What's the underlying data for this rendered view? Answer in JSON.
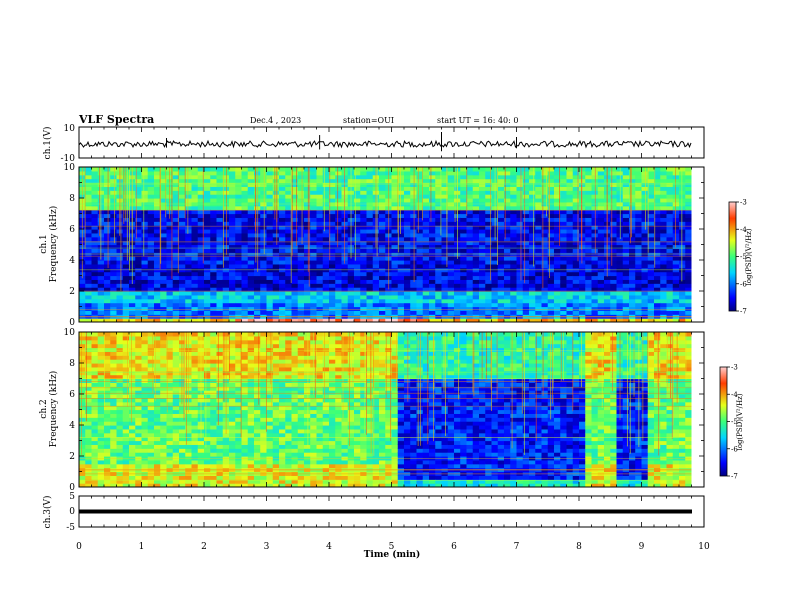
{
  "header": {
    "title": "VLF Spectra",
    "date": "Dec.4 , 2023",
    "station": "station=OUI",
    "start": "start UT =  16: 40: 0"
  },
  "chart_data": [
    {
      "type": "line",
      "panel": "ch1-waveform",
      "ylabel": "ch.1(V)",
      "ylim": [
        -10,
        10
      ],
      "y_ticks": [
        "10",
        "-10"
      ],
      "x": [
        0,
        1,
        2,
        3,
        4,
        5,
        6,
        7,
        8,
        9,
        9.8
      ],
      "values": [
        -1,
        -1,
        -1,
        -1,
        -1,
        -1,
        -1,
        -1,
        -1,
        -1,
        -1
      ]
    },
    {
      "type": "heatmap",
      "panel": "ch1-spectrogram",
      "ylabel": "ch.1\nFrequency (kHz)",
      "ylim": [
        0,
        10
      ],
      "y_ticks": [
        "0",
        "2",
        "4",
        "6",
        "8",
        "10"
      ],
      "xlim": [
        0,
        10
      ],
      "colorbar": {
        "label": "log(PSD)(V²/Hz)",
        "range": [
          -7,
          -3
        ],
        "ticks": [
          "-3",
          "-4",
          "-5",
          "-6",
          "-7"
        ]
      },
      "bands_khz": [
        {
          "from": 0,
          "to": 0.3,
          "level": -3.5
        },
        {
          "from": 0.3,
          "to": 1.2,
          "level": -6.3
        },
        {
          "from": 1.2,
          "to": 3.8,
          "level": -6.5
        },
        {
          "from": 3.8,
          "to": 7.2,
          "level": -6.4
        },
        {
          "from": 7.2,
          "to": 10,
          "level": -5.0
        }
      ]
    },
    {
      "type": "heatmap",
      "panel": "ch2-spectrogram",
      "ylabel": "ch.2\nFrequency (kHz)",
      "ylim": [
        0,
        10
      ],
      "y_ticks": [
        "0",
        "2",
        "4",
        "6",
        "8",
        "10"
      ],
      "xlim": [
        0,
        10
      ],
      "colorbar": {
        "label": "log(PSD)(V²/Hz)",
        "range": [
          -7,
          -3
        ],
        "ticks": [
          "-3",
          "-4",
          "-5",
          "-6",
          "-7"
        ]
      },
      "quiet_intervals_min": [
        [
          5.05,
          8.05
        ],
        [
          8.6,
          9.05
        ]
      ]
    },
    {
      "type": "line",
      "panel": "ch3-waveform",
      "ylabel": "ch.3(V)",
      "ylim": [
        -5,
        5
      ],
      "y_ticks": [
        "5",
        "0",
        "-5"
      ],
      "x": [
        0,
        9.8
      ],
      "values": [
        0,
        0
      ]
    }
  ],
  "x_axis": {
    "label": "Time (min)",
    "ticks": [
      "0",
      "1",
      "2",
      "3",
      "4",
      "5",
      "6",
      "7",
      "8",
      "9",
      "10"
    ],
    "xlim": [
      0,
      10
    ],
    "data_end": 9.8
  },
  "colors": {
    "bg": "#ffffff",
    "trace": "#000000"
  }
}
